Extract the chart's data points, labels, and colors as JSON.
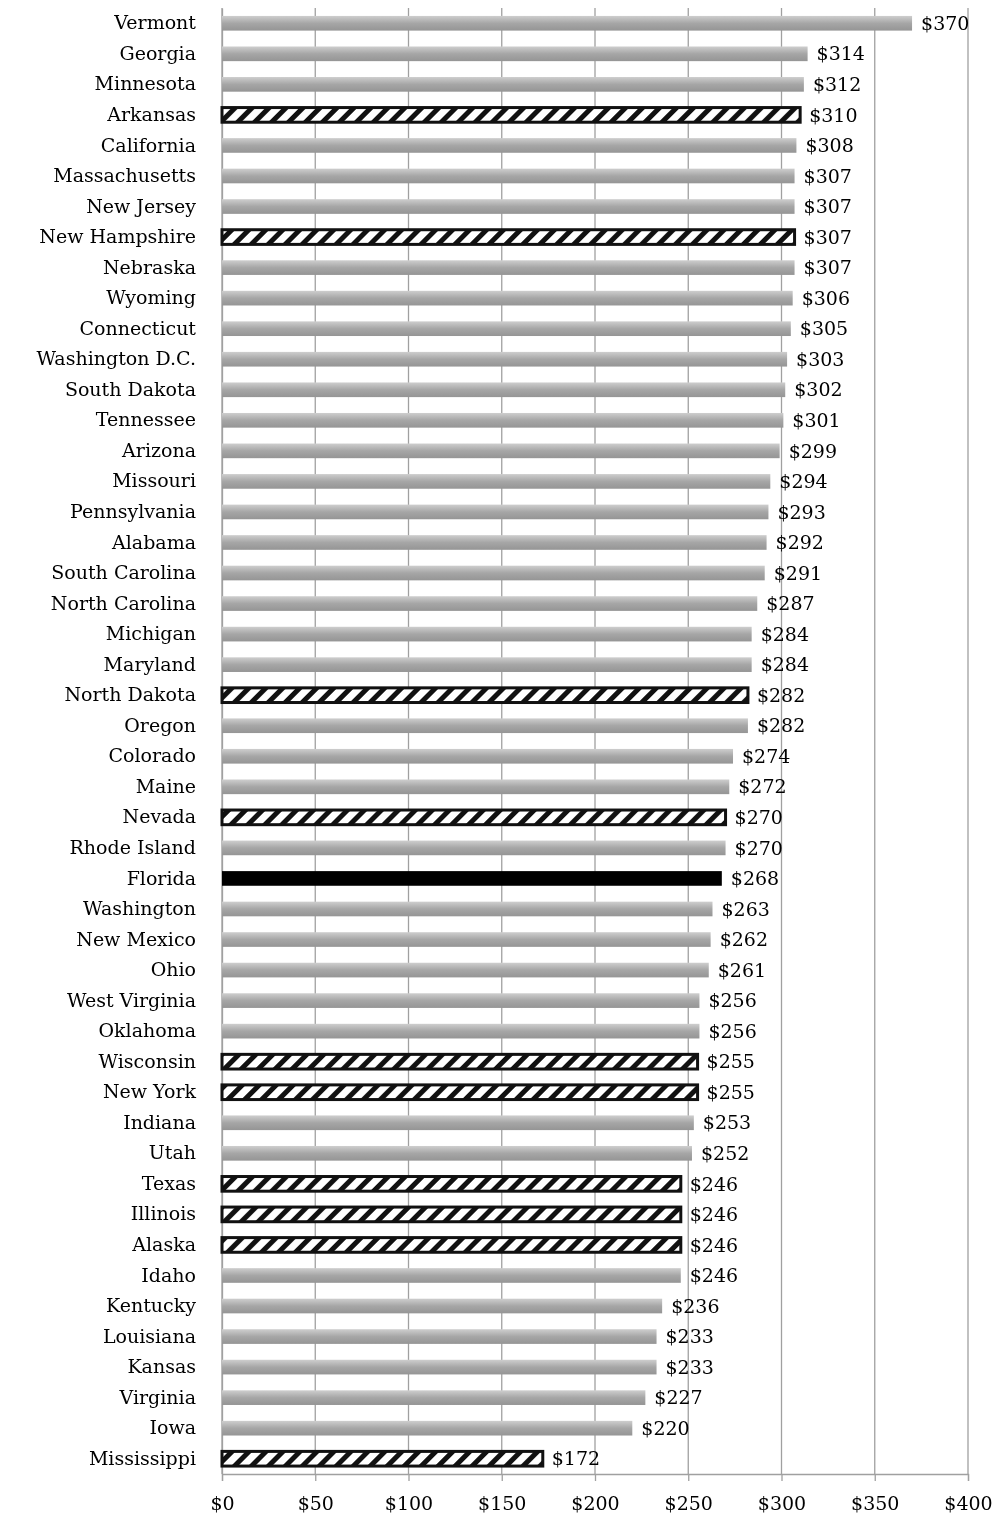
{
  "chart_data": {
    "type": "bar",
    "orientation": "horizontal",
    "categories": [
      "Vermont",
      "Georgia",
      "Minnesota",
      "Arkansas",
      "California",
      "Massachusetts",
      "New Jersey",
      "New Hampshire",
      "Nebraska",
      "Wyoming",
      "Connecticut",
      "Washington D.C.",
      "South Dakota",
      "Tennessee",
      "Arizona",
      "Missouri",
      "Pennsylvania",
      "Alabama",
      "South Carolina",
      "North Carolina",
      "Michigan",
      "Maryland",
      "North Dakota",
      "Oregon",
      "Colorado",
      "Maine",
      "Nevada",
      "Rhode Island",
      "Florida",
      "Washington",
      "New Mexico",
      "Ohio",
      "West Virginia",
      "Oklahoma",
      "Wisconsin",
      "New York",
      "Indiana",
      "Utah",
      "Texas",
      "Illinois",
      "Alaska",
      "Idaho",
      "Kentucky",
      "Louisiana",
      "Kansas",
      "Virginia",
      "Iowa",
      "Mississippi"
    ],
    "values": [
      370,
      314,
      312,
      310,
      308,
      307,
      307,
      307,
      307,
      306,
      305,
      303,
      302,
      301,
      299,
      294,
      293,
      292,
      291,
      287,
      284,
      284,
      282,
      282,
      274,
      272,
      270,
      270,
      268,
      263,
      262,
      261,
      256,
      256,
      255,
      255,
      253,
      252,
      246,
      246,
      246,
      246,
      236,
      233,
      233,
      227,
      220,
      172
    ],
    "colors": [
      "#a6a6a6",
      "#a6a6a6",
      "#a6a6a6",
      "#111111",
      "#a6a6a6",
      "#a6a6a6",
      "#a6a6a6",
      "#111111",
      "#a6a6a6",
      "#a6a6a6",
      "#a6a6a6",
      "#a6a6a6",
      "#a6a6a6",
      "#a6a6a6",
      "#a6a6a6",
      "#a6a6a6",
      "#a6a6a6",
      "#a6a6a6",
      "#a6a6a6",
      "#a6a6a6",
      "#a6a6a6",
      "#a6a6a6",
      "#111111",
      "#a6a6a6",
      "#a6a6a6",
      "#a6a6a6",
      "#111111",
      "#a6a6a6",
      "#000000",
      "#a6a6a6",
      "#a6a6a6",
      "#a6a6a6",
      "#a6a6a6",
      "#a6a6a6",
      "#111111",
      "#111111",
      "#a6a6a6",
      "#a6a6a6",
      "#111111",
      "#111111",
      "#111111",
      "#a6a6a6",
      "#a6a6a6",
      "#a6a6a6",
      "#a6a6a6",
      "#a6a6a6",
      "#a6a6a6",
      "#111111"
    ],
    "value_labels": [
      "$370",
      "$314",
      "$312",
      "$310",
      "$308",
      "$307",
      "$307",
      "$307",
      "$307",
      "$306",
      "$305",
      "$303",
      "$302",
      "$301",
      "$299",
      "$294",
      "$293",
      "$292",
      "$291",
      "$287",
      "$284",
      "$284",
      "$282",
      "$282",
      "$274",
      "$272",
      "$270",
      "$270",
      "$268",
      "$263",
      "$262",
      "$261",
      "$256",
      "$256",
      "$255",
      "$255",
      "$253",
      "$252",
      "$246",
      "$246",
      "$246",
      "$246",
      "$236",
      "$233",
      "$233",
      "$227",
      "$220",
      "$172"
    ],
    "xlim": [
      0,
      400
    ],
    "xticks": [
      {
        "value": 0,
        "label": "$0"
      },
      {
        "value": 50,
        "label": "$50"
      },
      {
        "value": 100,
        "label": "$100"
      },
      {
        "value": 150,
        "label": "$150"
      },
      {
        "value": 200,
        "label": "$200"
      },
      {
        "value": 250,
        "label": "$250"
      },
      {
        "value": 300,
        "label": "$300"
      },
      {
        "value": 350,
        "label": "$350"
      },
      {
        "value": 400,
        "label": "$400"
      }
    ],
    "grid": "x"
  }
}
